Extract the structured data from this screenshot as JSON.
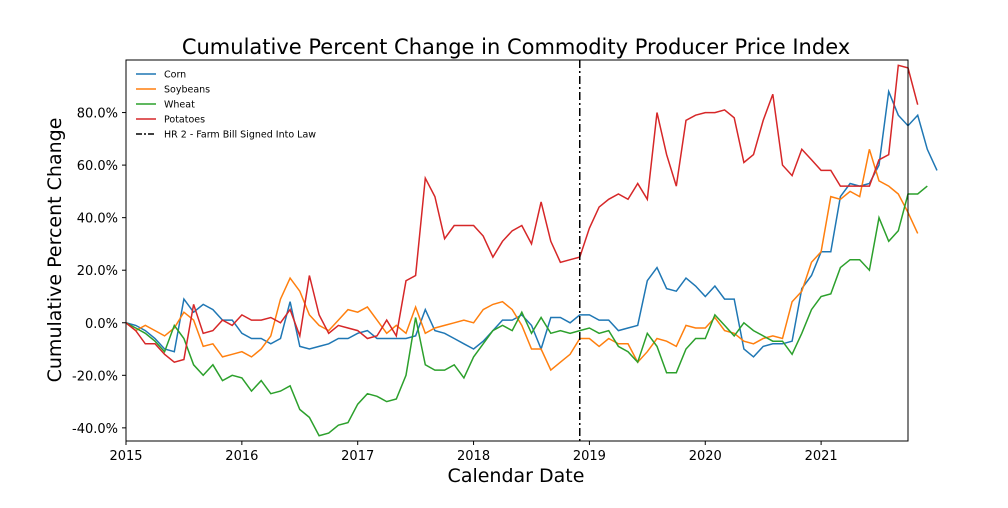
{
  "chart_data": {
    "type": "line",
    "title": "Cumulative Percent Change in Commodity Producer Price Index",
    "xlabel": "Calendar Date",
    "ylabel": "Cumulative Percent Change",
    "x_axis": {
      "type": "date",
      "start": "2015-01",
      "end": "2021-10",
      "tick_labels": [
        "2015",
        "2016",
        "2017",
        "2018",
        "2019",
        "2020",
        "2021"
      ]
    },
    "y_axis": {
      "ylim": [
        -45,
        100
      ],
      "ticks": [
        -40,
        -20,
        0,
        20,
        40,
        60,
        80
      ],
      "tick_labels": [
        "-40.0%",
        "-20.0%",
        "0.0%",
        "20.0%",
        "40.0%",
        "60.0%",
        "80.0%"
      ]
    },
    "grid": false,
    "legend_position": "top-left",
    "series": [
      {
        "name": "Corn",
        "color": "#1f77b4",
        "values": [
          0,
          -1,
          -3,
          -6,
          -10,
          -11,
          9,
          4,
          7,
          5,
          1,
          1,
          -4,
          -6,
          -6,
          -8,
          -6,
          8,
          -9,
          -10,
          -9,
          -8,
          -6,
          -6,
          -4,
          -3,
          -6,
          -6,
          -6,
          -6,
          -5,
          5,
          -3,
          -4,
          -6,
          -8,
          -10,
          -7,
          -3,
          1,
          1,
          3,
          -1,
          -10,
          2,
          2,
          0,
          3,
          3,
          1,
          1,
          -3,
          -2,
          -1,
          16,
          21,
          13,
          12,
          17,
          14,
          10,
          14,
          9,
          9,
          -10,
          -13,
          -9,
          -8,
          -8,
          -7,
          13,
          18,
          27,
          27,
          48,
          53,
          52,
          53,
          60,
          88,
          79,
          75,
          79,
          66,
          58
        ]
      },
      {
        "name": "Soybeans",
        "color": "#ff7f0e",
        "values": [
          0,
          -3,
          -1,
          -3,
          -5,
          -2,
          4,
          1,
          -9,
          -8,
          -13,
          -12,
          -11,
          -13,
          -10,
          -5,
          9,
          17,
          12,
          3,
          -1,
          -3,
          1,
          5,
          4,
          6,
          1,
          -4,
          -1,
          -4,
          6,
          -4,
          -2,
          -1,
          0,
          1,
          0,
          5,
          7,
          8,
          5,
          -1,
          -10,
          -10,
          -18,
          -15,
          -12,
          -6,
          -6,
          -9,
          -6,
          -8,
          -8,
          -15,
          -11,
          -6,
          -7,
          -9,
          -1,
          -2,
          -2,
          2,
          -3,
          -4,
          -7,
          -8,
          -6,
          -5,
          -6,
          8,
          12,
          23,
          27,
          48,
          47,
          50,
          48,
          66,
          54,
          52,
          49,
          42,
          34
        ]
      },
      {
        "name": "Wheat",
        "color": "#2ca02c",
        "values": [
          0,
          -2,
          -4,
          -7,
          -11,
          -1,
          -6,
          -16,
          -20,
          -16,
          -22,
          -20,
          -21,
          -26,
          -22,
          -27,
          -26,
          -24,
          -33,
          -36,
          -43,
          -42,
          -39,
          -38,
          -31,
          -27,
          -28,
          -30,
          -29,
          -20,
          2,
          -16,
          -18,
          -18,
          -16,
          -21,
          -13,
          -8,
          -3,
          -1,
          -3,
          4,
          -4,
          2,
          -4,
          -3,
          -4,
          -3,
          -2,
          -4,
          -3,
          -9,
          -11,
          -15,
          -4,
          -9,
          -19,
          -19,
          -10,
          -6,
          -6,
          3,
          -1,
          -5,
          0,
          -3,
          -5,
          -7,
          -7,
          -12,
          -4,
          5,
          10,
          11,
          21,
          24,
          24,
          20,
          40,
          31,
          35,
          49,
          49,
          52
        ]
      },
      {
        "name": "Potatoes",
        "color": "#d62728",
        "values": [
          0,
          -3,
          -8,
          -8,
          -12,
          -15,
          -14,
          7,
          -4,
          -3,
          1,
          -1,
          3,
          1,
          1,
          2,
          0,
          5,
          -5,
          18,
          3,
          -4,
          -1,
          -2,
          -3,
          -6,
          -5,
          1,
          -5,
          16,
          18,
          55,
          48,
          32,
          37,
          37,
          37,
          33,
          25,
          31,
          35,
          37,
          30,
          46,
          31,
          23,
          24,
          25,
          36,
          44,
          47,
          49,
          47,
          53,
          47,
          80,
          64,
          52,
          77,
          79,
          80,
          80,
          81,
          78,
          61,
          64,
          77,
          87,
          60,
          56,
          66,
          62,
          58,
          58,
          52,
          52,
          52,
          52,
          62,
          64,
          98,
          97,
          83
        ]
      }
    ],
    "annotation": {
      "label": "HR 2 - Farm Bill Signed Into Law",
      "date": "2018-12",
      "color": "#000000",
      "style": "dash-dot"
    }
  }
}
